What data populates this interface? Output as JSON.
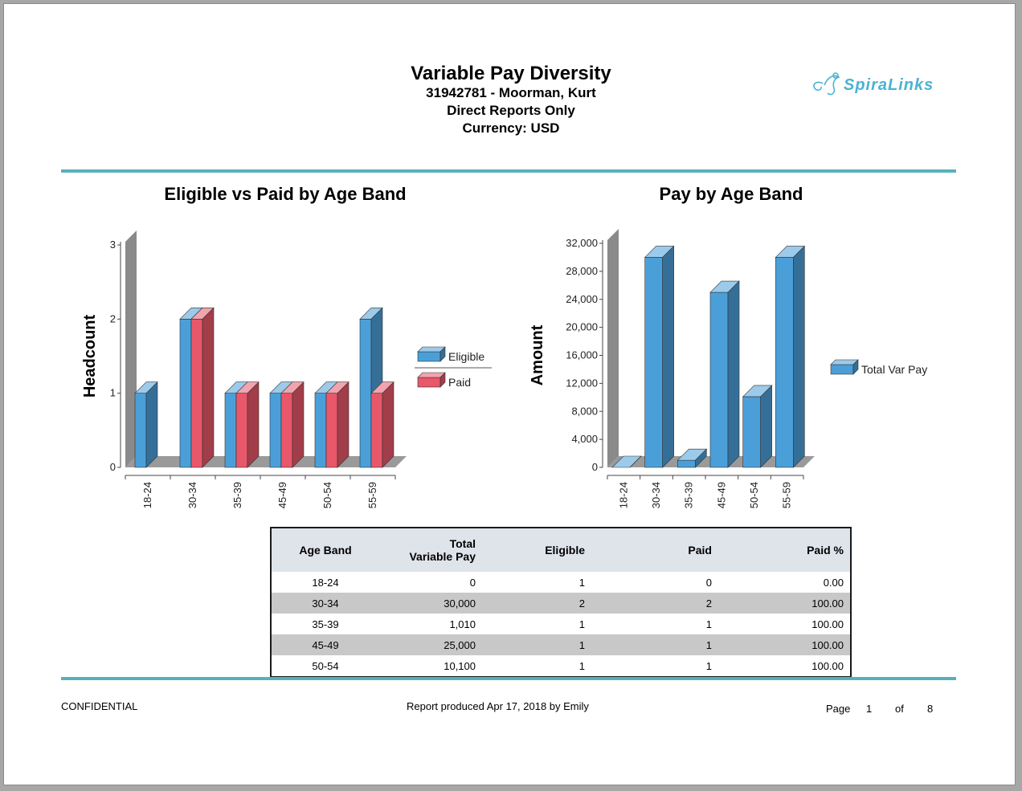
{
  "header": {
    "title": "Variable Pay Diversity",
    "employee": "31942781 - Moorman, Kurt",
    "scope": "Direct Reports Only",
    "currency": "Currency: USD",
    "logo_text": "SpiraLinks",
    "rule_color": "#57b1b8"
  },
  "chart_data": [
    {
      "type": "bar",
      "title": "Eligible vs Paid by Age Band",
      "ylabel": "Headcount",
      "xlabel": "",
      "categories": [
        "18-24",
        "30-34",
        "35-39",
        "45-49",
        "50-54",
        "55-59"
      ],
      "series": [
        {
          "name": "Eligible",
          "values": [
            1,
            2,
            1,
            1,
            1,
            2
          ],
          "color": "#4b9fd9"
        },
        {
          "name": "Paid",
          "values": [
            0,
            2,
            1,
            1,
            1,
            1
          ],
          "color": "#e8576a"
        }
      ],
      "ylim": [
        0,
        3
      ],
      "yticks": [
        "0",
        "1",
        "2",
        "3"
      ],
      "legend": "right",
      "grid": false
    },
    {
      "type": "bar",
      "title": "Pay by Age Band",
      "ylabel": "Amount",
      "xlabel": "",
      "categories": [
        "18-24",
        "30-34",
        "35-39",
        "45-49",
        "50-54",
        "55-59"
      ],
      "series": [
        {
          "name": "Total Var Pay",
          "values": [
            0,
            30000,
            1010,
            25000,
            10100,
            30000
          ],
          "color": "#4b9fd9"
        }
      ],
      "ylim": [
        0,
        32000
      ],
      "yticks": [
        "0",
        "4,000",
        "8,000",
        "12,000",
        "16,000",
        "20,000",
        "24,000",
        "28,000",
        "32,000"
      ],
      "legend": "right",
      "grid": false
    }
  ],
  "table": {
    "headers": [
      "Age Band",
      "Total\nVariable Pay",
      "Eligible",
      "Paid",
      "Paid %"
    ],
    "rows": [
      [
        "18-24",
        "0",
        "1",
        "0",
        "0.00"
      ],
      [
        "30-34",
        "30,000",
        "2",
        "2",
        "100.00"
      ],
      [
        "35-39",
        "1,010",
        "1",
        "1",
        "100.00"
      ],
      [
        "45-49",
        "25,000",
        "1",
        "1",
        "100.00"
      ],
      [
        "50-54",
        "10,100",
        "1",
        "1",
        "100.00"
      ]
    ]
  },
  "footer": {
    "confidential": "CONFIDENTIAL",
    "produced": "Report produced Apr 17, 2018 by Emily",
    "page_label": "Page",
    "page_current": "1",
    "page_of": "of",
    "page_total": "8"
  }
}
